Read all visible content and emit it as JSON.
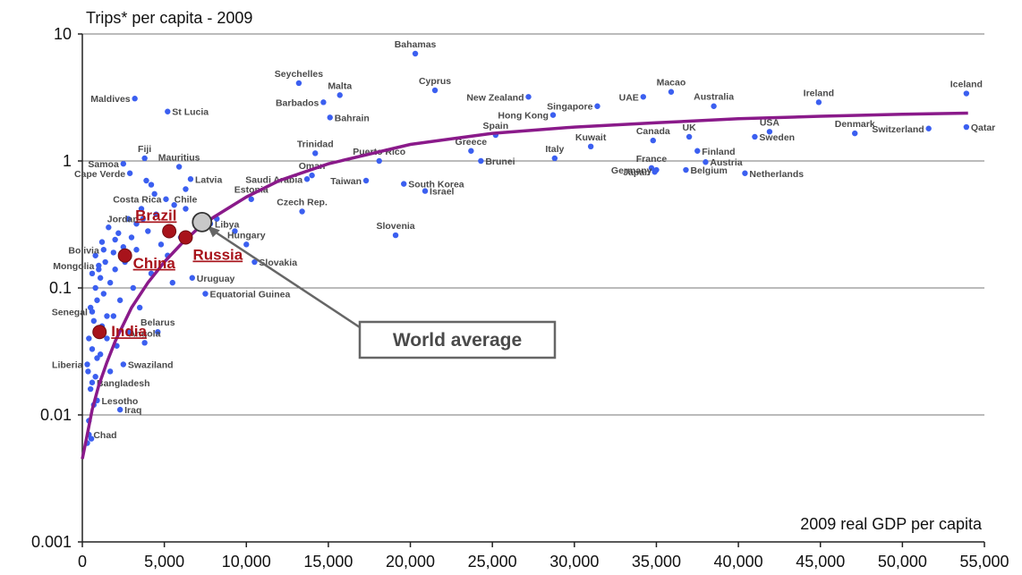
{
  "chart_data": {
    "type": "scatter",
    "title": "Trips* per capita - 2009",
    "xlabel": "2009 real GDP per capita",
    "ylabel": "",
    "x_scale": "linear",
    "y_scale": "log",
    "xlim": [
      0,
      55000
    ],
    "ylim": [
      0.001,
      10
    ],
    "x_ticks": [
      "0",
      "5,000",
      "10,000",
      "15,000",
      "20,000",
      "25,000",
      "30,000",
      "35,000",
      "40,000",
      "45,000",
      "50,000",
      "55,000"
    ],
    "y_ticks": [
      "0.001",
      "0.01",
      "0.1",
      "1",
      "10"
    ],
    "grid": "horizontal",
    "colors": {
      "points": "#3b5ff0",
      "trend": "#8a1a8a",
      "highlight": "#a8131b",
      "world": "#c8c8c8",
      "callout": "#666666"
    },
    "labeled_points": [
      {
        "name": "Bahamas",
        "x": 20300,
        "y": 7.0
      },
      {
        "name": "Seychelles",
        "x": 13200,
        "y": 4.1
      },
      {
        "name": "Malta",
        "x": 15700,
        "y": 3.3
      },
      {
        "name": "Barbados",
        "x": 14700,
        "y": 2.9
      },
      {
        "name": "Bahrain",
        "x": 15100,
        "y": 2.2
      },
      {
        "name": "Cyprus",
        "x": 21500,
        "y": 3.6
      },
      {
        "name": "Maldives",
        "x": 3200,
        "y": 3.1
      },
      {
        "name": "St Lucia",
        "x": 5200,
        "y": 2.45
      },
      {
        "name": "New Zealand",
        "x": 27200,
        "y": 3.2
      },
      {
        "name": "Hong Kong",
        "x": 28700,
        "y": 2.3
      },
      {
        "name": "Singapore",
        "x": 31400,
        "y": 2.7
      },
      {
        "name": "UAE",
        "x": 34200,
        "y": 3.2
      },
      {
        "name": "Macao",
        "x": 35900,
        "y": 3.5
      },
      {
        "name": "Australia",
        "x": 38500,
        "y": 2.7
      },
      {
        "name": "Ireland",
        "x": 44900,
        "y": 2.9
      },
      {
        "name": "Iceland",
        "x": 53900,
        "y": 3.4
      },
      {
        "name": "Spain",
        "x": 25200,
        "y": 1.6
      },
      {
        "name": "Greece",
        "x": 23700,
        "y": 1.2
      },
      {
        "name": "Brunei",
        "x": 24300,
        "y": 1.0
      },
      {
        "name": "Italy",
        "x": 28800,
        "y": 1.05
      },
      {
        "name": "Kuwait",
        "x": 31000,
        "y": 1.3
      },
      {
        "name": "Canada",
        "x": 34800,
        "y": 1.45
      },
      {
        "name": "UK",
        "x": 37000,
        "y": 1.55
      },
      {
        "name": "Finland",
        "x": 37500,
        "y": 1.2
      },
      {
        "name": "USA",
        "x": 41900,
        "y": 1.7
      },
      {
        "name": "Sweden",
        "x": 41000,
        "y": 1.55
      },
      {
        "name": "Denmark",
        "x": 47100,
        "y": 1.65
      },
      {
        "name": "Switzerland",
        "x": 51600,
        "y": 1.8
      },
      {
        "name": "Qatar",
        "x": 53900,
        "y": 1.85
      },
      {
        "name": "France",
        "x": 34700,
        "y": 0.88
      },
      {
        "name": "Germany",
        "x": 35000,
        "y": 0.85
      },
      {
        "name": "Japan",
        "x": 34900,
        "y": 0.82
      },
      {
        "name": "Austria",
        "x": 38000,
        "y": 0.98
      },
      {
        "name": "Belgium",
        "x": 36800,
        "y": 0.85
      },
      {
        "name": "Netherlands",
        "x": 40400,
        "y": 0.8
      },
      {
        "name": "Trinidad",
        "x": 14200,
        "y": 1.15
      },
      {
        "name": "Oman",
        "x": 14000,
        "y": 0.77
      },
      {
        "name": "Saudi Arabia",
        "x": 13700,
        "y": 0.72
      },
      {
        "name": "Puerto Rico",
        "x": 18100,
        "y": 1.0
      },
      {
        "name": "Taiwan",
        "x": 17300,
        "y": 0.7
      },
      {
        "name": "South Korea",
        "x": 19600,
        "y": 0.66
      },
      {
        "name": "Israel",
        "x": 20900,
        "y": 0.58
      },
      {
        "name": "Czech Rep.",
        "x": 13400,
        "y": 0.4
      },
      {
        "name": "Slovenia",
        "x": 19100,
        "y": 0.26
      },
      {
        "name": "Estonia",
        "x": 10300,
        "y": 0.5
      },
      {
        "name": "Latvia",
        "x": 6600,
        "y": 0.72
      },
      {
        "name": "Mauritius",
        "x": 5900,
        "y": 0.9
      },
      {
        "name": "Fiji",
        "x": 3800,
        "y": 1.05
      },
      {
        "name": "Samoa",
        "x": 2500,
        "y": 0.95
      },
      {
        "name": "Cape Verde",
        "x": 2900,
        "y": 0.8
      },
      {
        "name": "Costa Rica",
        "x": 5100,
        "y": 0.5
      },
      {
        "name": "Chile",
        "x": 6300,
        "y": 0.42
      },
      {
        "name": "Libya",
        "x": 7800,
        "y": 0.32
      },
      {
        "name": "Hungary",
        "x": 10000,
        "y": 0.22
      },
      {
        "name": "Slovakia",
        "x": 10500,
        "y": 0.16
      },
      {
        "name": "Jordan",
        "x": 3700,
        "y": 0.35
      },
      {
        "name": "Bolivia",
        "x": 1300,
        "y": 0.2
      },
      {
        "name": "Mongolia",
        "x": 1000,
        "y": 0.15
      },
      {
        "name": "Uruguay",
        "x": 6700,
        "y": 0.12
      },
      {
        "name": "Equatorial Guinea",
        "x": 7500,
        "y": 0.09
      },
      {
        "name": "Senegal",
        "x": 600,
        "y": 0.065
      },
      {
        "name": "Belarus",
        "x": 4600,
        "y": 0.045
      },
      {
        "name": "Angola",
        "x": 3800,
        "y": 0.037
      },
      {
        "name": "Liberia",
        "x": 300,
        "y": 0.025
      },
      {
        "name": "Swaziland",
        "x": 2500,
        "y": 0.025
      },
      {
        "name": "Bangladesh",
        "x": 600,
        "y": 0.018
      },
      {
        "name": "Lesotho",
        "x": 900,
        "y": 0.013
      },
      {
        "name": "Iraq",
        "x": 2300,
        "y": 0.011
      },
      {
        "name": "Chad",
        "x": 400,
        "y": 0.007
      }
    ],
    "unlabeled_points": [
      {
        "x": 300,
        "y": 0.006
      },
      {
        "x": 550,
        "y": 0.0065
      },
      {
        "x": 400,
        "y": 0.009
      },
      {
        "x": 700,
        "y": 0.012
      },
      {
        "x": 500,
        "y": 0.016
      },
      {
        "x": 800,
        "y": 0.02
      },
      {
        "x": 350,
        "y": 0.022
      },
      {
        "x": 900,
        "y": 0.028
      },
      {
        "x": 600,
        "y": 0.033
      },
      {
        "x": 400,
        "y": 0.04
      },
      {
        "x": 1200,
        "y": 0.05
      },
      {
        "x": 700,
        "y": 0.055
      },
      {
        "x": 1500,
        "y": 0.06
      },
      {
        "x": 500,
        "y": 0.07
      },
      {
        "x": 900,
        "y": 0.08
      },
      {
        "x": 1300,
        "y": 0.09
      },
      {
        "x": 800,
        "y": 0.1
      },
      {
        "x": 1700,
        "y": 0.11
      },
      {
        "x": 1100,
        "y": 0.12
      },
      {
        "x": 600,
        "y": 0.13
      },
      {
        "x": 2000,
        "y": 0.14
      },
      {
        "x": 1400,
        "y": 0.16
      },
      {
        "x": 800,
        "y": 0.18
      },
      {
        "x": 1900,
        "y": 0.19
      },
      {
        "x": 2500,
        "y": 0.21
      },
      {
        "x": 1200,
        "y": 0.23
      },
      {
        "x": 3000,
        "y": 0.25
      },
      {
        "x": 2200,
        "y": 0.27
      },
      {
        "x": 1600,
        "y": 0.3
      },
      {
        "x": 3300,
        "y": 0.32
      },
      {
        "x": 4000,
        "y": 0.28
      },
      {
        "x": 2800,
        "y": 0.35
      },
      {
        "x": 4500,
        "y": 0.38
      },
      {
        "x": 3600,
        "y": 0.42
      },
      {
        "x": 5600,
        "y": 0.45
      },
      {
        "x": 4400,
        "y": 0.55
      },
      {
        "x": 6300,
        "y": 0.6
      },
      {
        "x": 3300,
        "y": 0.2
      },
      {
        "x": 4800,
        "y": 0.22
      },
      {
        "x": 2600,
        "y": 0.16
      },
      {
        "x": 4200,
        "y": 0.13
      },
      {
        "x": 5200,
        "y": 0.18
      },
      {
        "x": 6000,
        "y": 0.25
      },
      {
        "x": 2300,
        "y": 0.08
      },
      {
        "x": 3500,
        "y": 0.07
      },
      {
        "x": 1900,
        "y": 0.06
      },
      {
        "x": 2800,
        "y": 0.045
      },
      {
        "x": 1500,
        "y": 0.04
      },
      {
        "x": 3100,
        "y": 0.1
      },
      {
        "x": 5500,
        "y": 0.11
      },
      {
        "x": 1100,
        "y": 0.03
      },
      {
        "x": 1700,
        "y": 0.022
      },
      {
        "x": 2100,
        "y": 0.035
      },
      {
        "x": 1000,
        "y": 0.14
      },
      {
        "x": 2000,
        "y": 0.24
      },
      {
        "x": 3900,
        "y": 0.7
      },
      {
        "x": 4200,
        "y": 0.65
      },
      {
        "x": 7100,
        "y": 0.3
      },
      {
        "x": 8200,
        "y": 0.35
      },
      {
        "x": 9300,
        "y": 0.28
      }
    ],
    "highlighted": [
      {
        "name": "Brazil",
        "x": 5300,
        "y": 0.28
      },
      {
        "name": "Russia",
        "x": 6300,
        "y": 0.25
      },
      {
        "name": "China",
        "x": 2600,
        "y": 0.18
      },
      {
        "name": "India",
        "x": 1050,
        "y": 0.045
      }
    ],
    "world_average": {
      "x": 7300,
      "y": 0.33
    },
    "callout": "World average",
    "trend_line": {
      "x": [
        0,
        300,
        600,
        1000,
        1500,
        2000,
        3000,
        4000,
        5000,
        6000,
        7000,
        8000,
        10000,
        12000,
        15000,
        20000,
        25000,
        30000,
        35000,
        40000,
        45000,
        50000,
        54000
      ],
      "y": [
        0.0045,
        0.007,
        0.011,
        0.017,
        0.026,
        0.038,
        0.07,
        0.11,
        0.16,
        0.22,
        0.29,
        0.36,
        0.52,
        0.7,
        0.95,
        1.35,
        1.65,
        1.85,
        2.0,
        2.15,
        2.25,
        2.33,
        2.38
      ]
    }
  }
}
